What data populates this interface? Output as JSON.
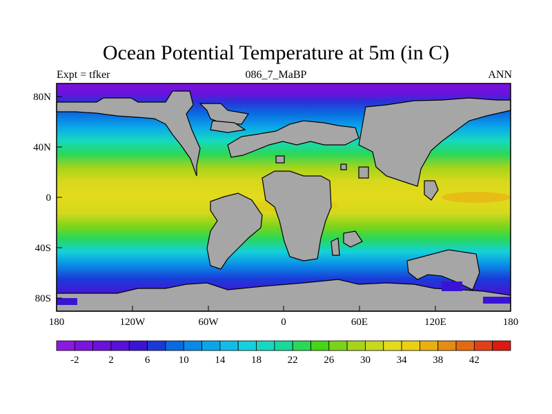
{
  "title": "Ocean Potential Temperature at 5m (in C)",
  "subtitle_left": "Expt = tfker",
  "subtitle_center": "086_7_MaBP",
  "subtitle_right": "ANN",
  "map": {
    "lon_ticks": [
      "180",
      "120W",
      "60W",
      "0",
      "60E",
      "120E",
      "180"
    ],
    "lat_ticks": [
      "80N",
      "40N",
      "0",
      "40S",
      "80S"
    ],
    "land_color": "#a6a6a6"
  },
  "colorbar": {
    "labels": [
      "-2",
      "2",
      "6",
      "10",
      "14",
      "18",
      "22",
      "26",
      "30",
      "34",
      "38",
      "42"
    ],
    "colors": [
      "#8a1ae0",
      "#7a14e0",
      "#6a12dc",
      "#5a10d8",
      "#3a14d4",
      "#1a3ad8",
      "#0a6ae0",
      "#0a8ae6",
      "#0aa6ea",
      "#12bce6",
      "#14d0dc",
      "#16d8c2",
      "#18d89a",
      "#2ad858",
      "#46d416",
      "#7ad41a",
      "#a6d41a",
      "#c8d81c",
      "#e2dc1c",
      "#ead012",
      "#e8b012",
      "#e68c12",
      "#e46a12",
      "#e2401a",
      "#dc1a12"
    ]
  }
}
